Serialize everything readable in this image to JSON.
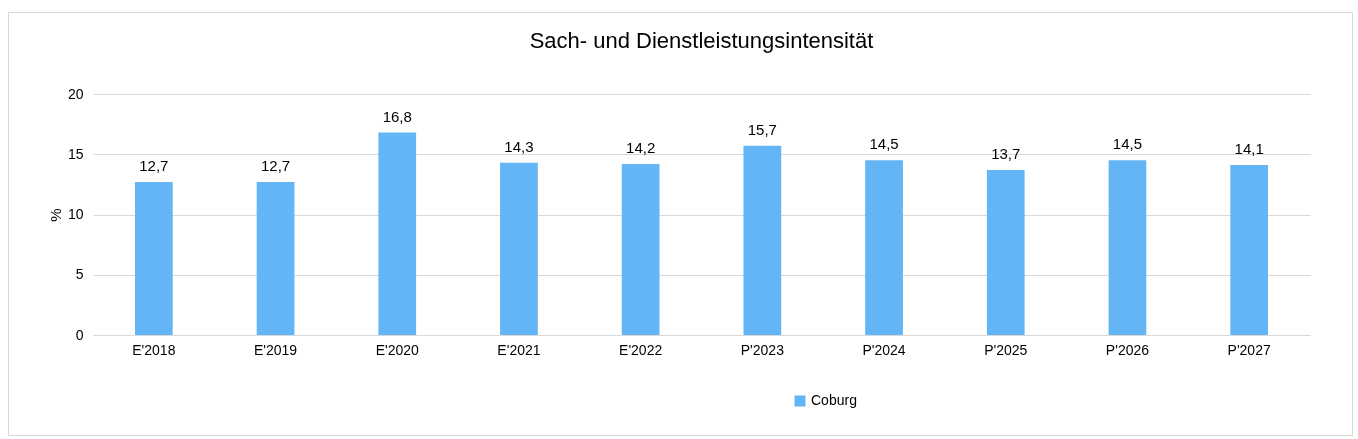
{
  "chart_data": {
    "type": "bar",
    "title": "Sach- und Dienstleistungsintensität",
    "ylabel": "%",
    "categories": [
      "E'2018",
      "E'2019",
      "E'2020",
      "E'2021",
      "E'2022",
      "P'2023",
      "P'2024",
      "P'2025",
      "P'2026",
      "P'2027"
    ],
    "series": [
      {
        "name": "Coburg",
        "color": "#63b5f5",
        "values": [
          12.7,
          12.7,
          16.8,
          14.3,
          14.2,
          15.7,
          14.5,
          13.7,
          14.5,
          14.1
        ],
        "value_labels": [
          "12,7",
          "12,7",
          "16,8",
          "14,3",
          "14,2",
          "15,7",
          "14,5",
          "13,7",
          "14,5",
          "14,1"
        ]
      }
    ],
    "ylim": [
      0,
      20
    ],
    "yticks": [
      0,
      5,
      10,
      15,
      20
    ],
    "grid": "y",
    "legend": "bottom"
  }
}
